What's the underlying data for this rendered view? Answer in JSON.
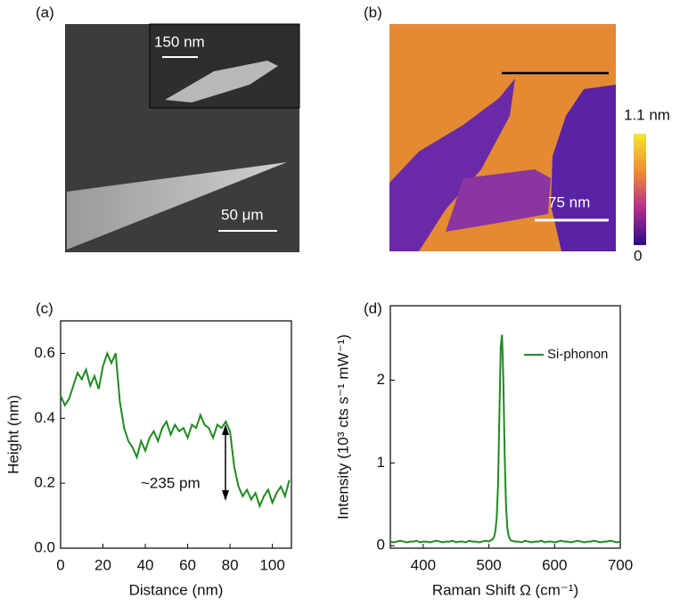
{
  "chart_data": [
    {
      "type": "image",
      "label": "(a)",
      "annotations": [
        "150 nm",
        "50 μm"
      ]
    },
    {
      "type": "image",
      "label": "(b)",
      "annotations": [
        "75 nm"
      ],
      "colorbar_lim": [
        0,
        1.1
      ],
      "colorbar_ticks": [
        0,
        {
          "value": 1.1,
          "label": "1.1 nm"
        }
      ]
    },
    {
      "type": "line",
      "label": "(c)",
      "xlabel": "Distance (nm)",
      "ylabel": "Height (nm)",
      "annotations": [
        "~235 pm"
      ],
      "color": "#1f8a1f",
      "x": [
        0,
        2,
        4,
        6,
        8,
        10,
        12,
        14,
        16,
        18,
        20,
        22,
        24,
        26,
        28,
        30,
        32,
        34,
        36,
        38,
        40,
        42,
        44,
        46,
        48,
        50,
        52,
        54,
        56,
        58,
        60,
        62,
        64,
        66,
        68,
        70,
        72,
        74,
        76,
        78,
        80,
        82,
        84,
        86,
        88,
        90,
        92,
        94,
        96,
        98,
        100,
        102,
        104,
        106,
        108
      ],
      "values": [
        0.47,
        0.44,
        0.46,
        0.5,
        0.54,
        0.52,
        0.55,
        0.5,
        0.53,
        0.49,
        0.56,
        0.6,
        0.57,
        0.6,
        0.45,
        0.37,
        0.33,
        0.31,
        0.28,
        0.33,
        0.3,
        0.34,
        0.36,
        0.33,
        0.37,
        0.39,
        0.35,
        0.38,
        0.36,
        0.37,
        0.34,
        0.38,
        0.37,
        0.41,
        0.38,
        0.37,
        0.34,
        0.38,
        0.37,
        0.39,
        0.36,
        0.25,
        0.19,
        0.16,
        0.18,
        0.15,
        0.17,
        0.13,
        0.16,
        0.18,
        0.14,
        0.17,
        0.19,
        0.16,
        0.21
      ],
      "xlim": [
        0,
        109
      ],
      "xticks": [
        0,
        20,
        40,
        60,
        80,
        100
      ],
      "ylim": [
        0,
        0.7
      ],
      "yticks": [
        {
          "value": 0,
          "label": "0.0"
        },
        0.2,
        0.4,
        0.6
      ]
    },
    {
      "type": "line",
      "label": "(d)",
      "xlabel": "Raman Shift Ω (cm⁻¹)",
      "ylabel": "Intensity (10³ cts s⁻¹ mW⁻¹)",
      "legend": "upper right",
      "x": [
        350,
        355,
        360,
        365,
        370,
        375,
        380,
        385,
        390,
        395,
        400,
        405,
        410,
        415,
        420,
        425,
        430,
        435,
        440,
        445,
        450,
        455,
        460,
        465,
        470,
        475,
        480,
        485,
        490,
        495,
        500,
        502,
        504,
        506,
        508,
        510,
        512,
        514,
        516,
        518,
        520,
        522,
        524,
        526,
        528,
        530,
        532,
        534,
        540,
        545,
        550,
        555,
        560,
        565,
        570,
        575,
        580,
        585,
        590,
        595,
        600,
        605,
        610,
        615,
        620,
        625,
        630,
        635,
        640,
        645,
        650,
        655,
        660,
        665,
        670,
        675,
        680,
        685,
        690,
        695,
        700
      ],
      "series": [
        {
          "name": "Si-phonon",
          "color": "#1f8a1f",
          "values": [
            0.05,
            0.04,
            0.05,
            0.06,
            0.05,
            0.04,
            0.05,
            0.05,
            0.06,
            0.04,
            0.05,
            0.05,
            0.04,
            0.05,
            0.06,
            0.05,
            0.04,
            0.05,
            0.05,
            0.06,
            0.04,
            0.05,
            0.05,
            0.04,
            0.06,
            0.05,
            0.05,
            0.04,
            0.05,
            0.06,
            0.05,
            0.06,
            0.07,
            0.08,
            0.11,
            0.18,
            0.35,
            0.75,
            1.6,
            2.4,
            2.55,
            2.0,
            1.1,
            0.5,
            0.22,
            0.12,
            0.08,
            0.06,
            0.05,
            0.05,
            0.04,
            0.06,
            0.05,
            0.04,
            0.05,
            0.05,
            0.06,
            0.04,
            0.05,
            0.05,
            0.04,
            0.05,
            0.06,
            0.05,
            0.05,
            0.04,
            0.05,
            0.06,
            0.05,
            0.04,
            0.05,
            0.05,
            0.06,
            0.05,
            0.04,
            0.05,
            0.05,
            0.06,
            0.05,
            0.04,
            0.05
          ]
        }
      ],
      "xlim": [
        350,
        700
      ],
      "xticks": [
        400,
        500,
        600,
        700
      ],
      "ylim": [
        -0.03,
        2.9
      ],
      "yticks": [
        0,
        1,
        2
      ]
    }
  ]
}
